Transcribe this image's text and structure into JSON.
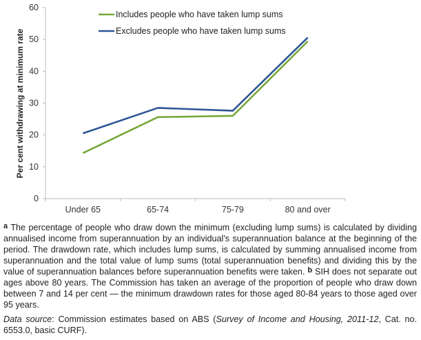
{
  "chart_data": {
    "type": "line",
    "categories": [
      "Under 65",
      "65-74",
      "75-79",
      "80 and over"
    ],
    "series": [
      {
        "name": "Includes people who have taken lump sums",
        "values": [
          14.3,
          25.6,
          26.0,
          49.4
        ],
        "color": "#77a73a"
      },
      {
        "name": "Excludes people who have taken lump sums",
        "values": [
          20.5,
          28.5,
          27.6,
          50.6
        ],
        "color": "#2c5596"
      }
    ],
    "ylabel": "Per cent withdrawing at minimum rate",
    "xlabel": "",
    "ylim": [
      0,
      60
    ],
    "yticks": [
      "0",
      "10",
      "20",
      "30",
      "40",
      "50",
      "60"
    ],
    "grid": false,
    "legend": "top-center"
  },
  "notes": {
    "a_marker": "a",
    "a_text": " The percentage of people who draw down the minimum (excluding lump sums) is calculated by dividing annualised income from superannuation by an individual's superannuation balance at the beginning of the period. The drawdown rate, which includes lump sums, is calculated by summing annualised income from superannuation and the total value of lump sums (total superannuation benefits) and dividing this by the value of superannuation balances before superannuation benefits were taken. ",
    "b_marker": "b",
    "b_text": " SIH does not separate out ages above 80 years. The Commission has taken an average of the proportion of people who draw down between 7 and 14 per cent — the minimum drawdown rates for those aged 80-84 years to those aged over 95 years.",
    "source_label": "Data source",
    "source_text1": ": Commission estimates based on ABS (",
    "source_italic": "Survey of Income and Housing, 2011-12",
    "source_text2": ", Cat. no. 6553.0, basic CURF)."
  }
}
